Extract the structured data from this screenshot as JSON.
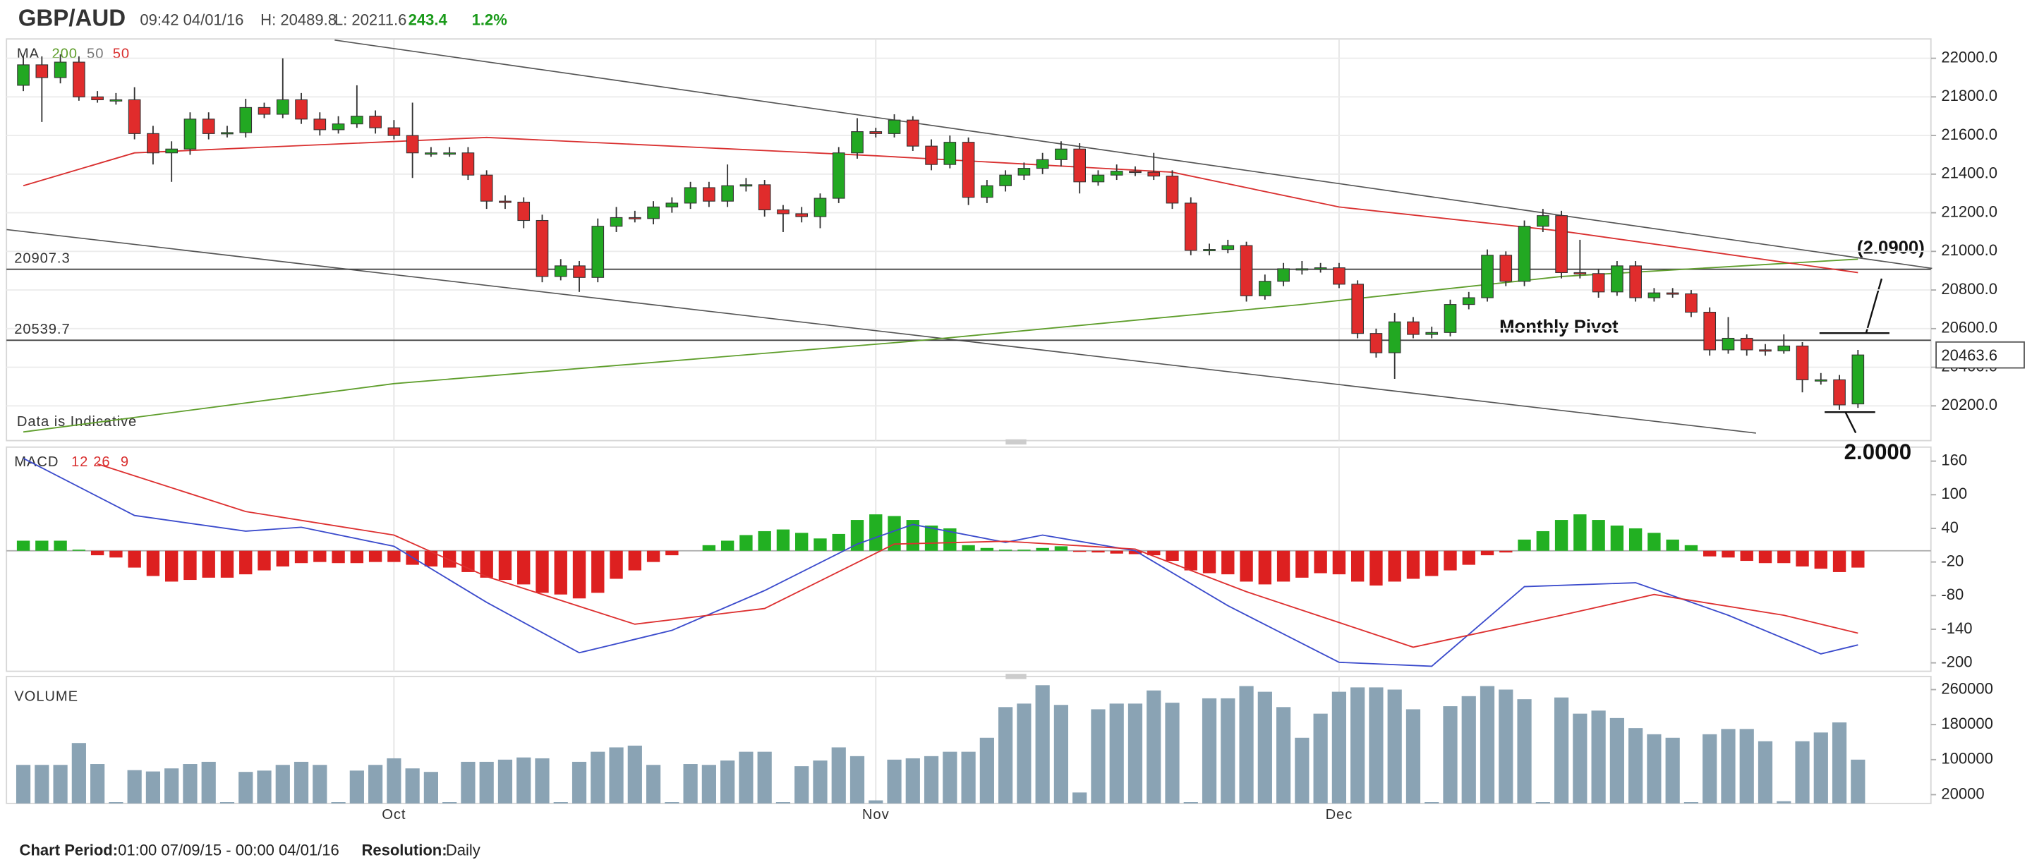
{
  "header": {
    "symbol": "GBP/AUD",
    "time": "09:42 04/01/16",
    "high": "H: 20489.8",
    "low": "L: 20211.6",
    "change": "243.4",
    "change_pct": "1.2%"
  },
  "chart_data": [
    {
      "type": "candlestick",
      "categories": [
        null,
        null,
        null,
        null,
        null,
        null,
        null,
        null,
        null,
        null,
        null,
        null,
        null,
        null,
        null,
        null,
        null,
        null,
        null,
        null,
        "Oct",
        null,
        null,
        null,
        null,
        null,
        null,
        null,
        null,
        null,
        null,
        null,
        null,
        null,
        null,
        null,
        null,
        null,
        null,
        null,
        null,
        null,
        null,
        null,
        null,
        null,
        "Nov",
        null,
        null,
        null,
        null,
        null,
        null,
        null,
        null,
        null,
        null,
        null,
        null,
        null,
        null,
        null,
        null,
        null,
        null,
        null,
        null,
        null,
        null,
        null,
        null,
        "Dec",
        null,
        null,
        null,
        null,
        null,
        null,
        null,
        null,
        null,
        null,
        null,
        null,
        null,
        null,
        null,
        null,
        null,
        null,
        null,
        null,
        null,
        null,
        null,
        null,
        null,
        null,
        null,
        null
      ],
      "open": [
        21860,
        21966,
        21900,
        21980,
        21800,
        21785,
        21785,
        21610,
        21510,
        21530,
        21685,
        21610,
        21615,
        21745,
        21710,
        21785,
        21685,
        21630,
        21660,
        21700,
        21640,
        21600,
        21510,
        21510,
        21510,
        21395,
        21260,
        21255,
        21160,
        20870,
        20925,
        20865,
        21130,
        21175,
        21170,
        21230,
        21250,
        21330,
        21260,
        21340,
        21345,
        21215,
        21195,
        21180,
        21275,
        21510,
        21620,
        21610,
        21680,
        21545,
        21450,
        21565,
        21280,
        21340,
        21395,
        21430,
        21475,
        21530,
        21360,
        21395,
        21415,
        21410,
        21390,
        21250,
        21005,
        21010,
        21030,
        20770,
        20845,
        20910,
        20910,
        20915,
        20830,
        20575,
        20475,
        20635,
        20570,
        20580,
        20725,
        20760,
        20980,
        20845,
        21130,
        21185,
        20890,
        20885,
        20790,
        20925,
        20760,
        20785,
        20780,
        20685,
        20490,
        20550,
        20490,
        20485,
        20510,
        20335,
        20335,
        20210
      ],
      "high": [
        22010,
        22010,
        22020,
        22010,
        21830,
        21820,
        21850,
        21650,
        21570,
        21720,
        21720,
        21650,
        21790,
        21770,
        22000,
        21820,
        21720,
        21700,
        21860,
        21730,
        21680,
        21770,
        21540,
        21540,
        21540,
        21420,
        21290,
        21280,
        21190,
        20960,
        20950,
        21170,
        21230,
        21210,
        21260,
        21280,
        21360,
        21360,
        21450,
        21380,
        21370,
        21240,
        21230,
        21300,
        21540,
        21690,
        21640,
        21710,
        21700,
        21580,
        21600,
        21590,
        21370,
        21420,
        21460,
        21510,
        21570,
        21560,
        21420,
        21450,
        21440,
        21510,
        21420,
        21280,
        21040,
        21060,
        21050,
        20880,
        20940,
        20950,
        20940,
        20940,
        20850,
        20600,
        20680,
        20660,
        20610,
        20750,
        20790,
        21010,
        21000,
        21160,
        21220,
        21210,
        21060,
        20910,
        20950,
        20950,
        20810,
        20810,
        20800,
        20710,
        20660,
        20570,
        20520,
        20570,
        20530,
        20370,
        20360,
        20490
      ],
      "low": [
        21830,
        21670,
        21870,
        21780,
        21770,
        21760,
        21580,
        21450,
        21360,
        21500,
        21580,
        21590,
        21590,
        21690,
        21690,
        21660,
        21600,
        21610,
        21640,
        21610,
        21580,
        21380,
        21490,
        21490,
        21370,
        21220,
        21220,
        21120,
        20840,
        20850,
        20790,
        20840,
        21100,
        21150,
        21140,
        21200,
        21220,
        21230,
        21230,
        21310,
        21180,
        21100,
        21150,
        21120,
        21250,
        21480,
        21590,
        21590,
        21520,
        21420,
        21430,
        21240,
        21250,
        21310,
        21370,
        21400,
        21440,
        21300,
        21340,
        21370,
        21390,
        21370,
        21220,
        20980,
        20980,
        20990,
        20740,
        20750,
        20820,
        20880,
        20890,
        20810,
        20550,
        20450,
        20340,
        20550,
        20550,
        20560,
        20700,
        20740,
        20820,
        20820,
        21100,
        20860,
        20860,
        20760,
        20770,
        20740,
        20740,
        20760,
        20660,
        20460,
        20470,
        20460,
        20460,
        20470,
        20270,
        20310,
        20180,
        20190
      ],
      "close": [
        21966,
        21900,
        21980,
        21800,
        21785,
        21785,
        21610,
        21510,
        21530,
        21685,
        21610,
        21615,
        21745,
        21710,
        21785,
        21685,
        21630,
        21660,
        21700,
        21640,
        21600,
        21510,
        21510,
        21510,
        21395,
        21260,
        21255,
        21160,
        20870,
        20925,
        20865,
        21130,
        21175,
        21170,
        21230,
        21250,
        21330,
        21260,
        21340,
        21345,
        21215,
        21195,
        21180,
        21275,
        21510,
        21620,
        21610,
        21680,
        21545,
        21450,
        21565,
        21280,
        21340,
        21395,
        21430,
        21475,
        21530,
        21360,
        21395,
        21415,
        21410,
        21390,
        21250,
        21005,
        21010,
        21030,
        20770,
        20845,
        20910,
        20910,
        20915,
        20830,
        20575,
        20475,
        20635,
        20570,
        20580,
        20725,
        20760,
        20980,
        20845,
        21130,
        21185,
        20890,
        20885,
        20790,
        20925,
        20760,
        20785,
        20780,
        20685,
        20490,
        20550,
        20490,
        20485,
        20510,
        20335,
        20335,
        20205,
        20463.6
      ],
      "up_color": "#22a822",
      "down_color": "#e02c2c",
      "ylim": [
        20020,
        22100
      ],
      "yticks": [
        {
          "value": 20200,
          "label": "20200.0"
        },
        {
          "value": 20400,
          "label": "20400.0"
        },
        {
          "value": 20600,
          "label": "20600.0"
        },
        {
          "value": 20800,
          "label": "20800.0"
        },
        {
          "value": 21000,
          "label": "21000.0"
        },
        {
          "value": 21200,
          "label": "21200.0"
        },
        {
          "value": 21400,
          "label": "21400.0"
        },
        {
          "value": 21600,
          "label": "21600.0"
        },
        {
          "value": 21800,
          "label": "21800.0"
        },
        {
          "value": 22000,
          "label": "22000.0"
        }
      ],
      "grid": true,
      "ma_label": "MA",
      "ma_param": "50",
      "series": [
        {
          "name": "200",
          "color": "#5f9e2c",
          "x": [
            0,
            20,
            48,
            69,
            83,
            99
          ],
          "values": [
            20065,
            20315,
            20535,
            20725,
            20870,
            20960
          ]
        },
        {
          "name": "50",
          "color": "#d93030",
          "x": [
            0,
            6,
            25,
            46,
            62,
            71,
            83,
            99
          ],
          "values": [
            21340,
            21510,
            21590,
            21495,
            21410,
            21230,
            21105,
            20890
          ]
        }
      ],
      "trendlines": [
        {
          "x": [
            16.8,
            103
          ],
          "values": [
            22094,
            20912
          ]
        },
        {
          "x": [
            -0.9,
            93.5
          ],
          "values": [
            21113,
            20059
          ]
        }
      ],
      "hlines": [
        20907.3,
        20539.7
      ],
      "annotations": {
        "pivot": "Monthly Pivot",
        "upper_target": "(2.0900)",
        "lower_target": "2.0000",
        "disclaimer": "Data is Indicative"
      }
    },
    {
      "type": "macd",
      "label": "MACD",
      "params": [
        "12",
        "26",
        "9"
      ],
      "histogram": [
        18,
        18,
        18,
        2,
        -8,
        -12,
        -30,
        -45,
        -55,
        -52,
        -48,
        -48,
        -42,
        -35,
        -28,
        -22,
        -20,
        -22,
        -22,
        -20,
        -20,
        -25,
        -28,
        -30,
        -38,
        -48,
        -52,
        -60,
        -75,
        -78,
        -85,
        -75,
        -50,
        -35,
        -20,
        -8,
        0,
        10,
        18,
        28,
        35,
        38,
        32,
        22,
        30,
        55,
        65,
        62,
        55,
        45,
        40,
        10,
        5,
        2,
        2,
        5,
        8,
        -2,
        -3,
        -5,
        -6,
        -8,
        -18,
        -35,
        -40,
        -42,
        -55,
        -60,
        -55,
        -48,
        -40,
        -42,
        -55,
        -62,
        -55,
        -50,
        -45,
        -35,
        -25,
        -8,
        -3,
        20,
        35,
        55,
        65,
        55,
        45,
        40,
        32,
        20,
        10,
        -10,
        -12,
        -18,
        -22,
        -22,
        -28,
        -32,
        -38,
        -30
      ],
      "up_color": "#22b022",
      "down_color": "#dd2020",
      "series": [
        {
          "color": "#3b4bcc",
          "x": [
            0,
            6,
            12,
            15,
            20,
            25,
            30,
            35,
            40,
            45,
            48,
            53,
            55,
            60,
            65,
            71,
            76,
            81,
            87,
            92,
            97,
            99
          ],
          "values": [
            165,
            63,
            35,
            42,
            8,
            -92,
            -182,
            -142,
            -71,
            12,
            47,
            15,
            28,
            0,
            -98,
            -199,
            -206,
            -64,
            -57,
            -115,
            -184,
            -168
          ]
        },
        {
          "color": "#dd3030",
          "x": [
            4,
            12,
            20,
            25,
            33,
            40,
            47,
            53,
            60,
            66,
            75,
            83,
            88,
            95,
            99
          ],
          "values": [
            155,
            70,
            28,
            -46,
            -131,
            -103,
            12,
            17,
            3,
            -73,
            -172,
            -115,
            -78,
            -115,
            -147
          ]
        }
      ],
      "ylim": [
        -215,
        185
      ],
      "yticks": [
        160,
        100,
        40,
        -20,
        -80,
        -140,
        -200
      ]
    },
    {
      "type": "volume",
      "label": "VOLUME",
      "values": [
        88000,
        88000,
        88000,
        138000,
        90000,
        3000,
        76000,
        73000,
        80000,
        90000,
        95000,
        3000,
        72000,
        75000,
        88000,
        95000,
        88000,
        3000,
        75000,
        88000,
        103000,
        80000,
        72000,
        3000,
        95000,
        95000,
        100000,
        105000,
        103000,
        3000,
        95000,
        118000,
        128000,
        132000,
        88000,
        3000,
        90000,
        88000,
        98000,
        118000,
        118000,
        3000,
        85000,
        98000,
        128000,
        108000,
        7000,
        100000,
        103000,
        108000,
        118000,
        118000,
        150000,
        220000,
        228000,
        270000,
        225000,
        25000,
        215000,
        228000,
        228000,
        258000,
        230000,
        3000,
        240000,
        240000,
        268000,
        255000,
        220000,
        150000,
        205000,
        255000,
        265000,
        265000,
        260000,
        215000,
        3000,
        222000,
        245000,
        268000,
        260000,
        238000,
        3000,
        242000,
        205000,
        212000,
        195000,
        172000,
        158000,
        150000,
        3000,
        158000,
        170000,
        170000,
        142000,
        5000,
        142000,
        162000,
        185000,
        100000
      ],
      "color": "#8aa3b4",
      "ylim": [
        0,
        290000
      ],
      "yticks": [
        20000,
        100000,
        180000,
        260000
      ]
    }
  ],
  "footer": {
    "period_label": "Chart Period:",
    "period": "01:00 07/09/15 - 00:00 04/01/16",
    "resolution_label": "Resolution:",
    "resolution": "Daily"
  }
}
